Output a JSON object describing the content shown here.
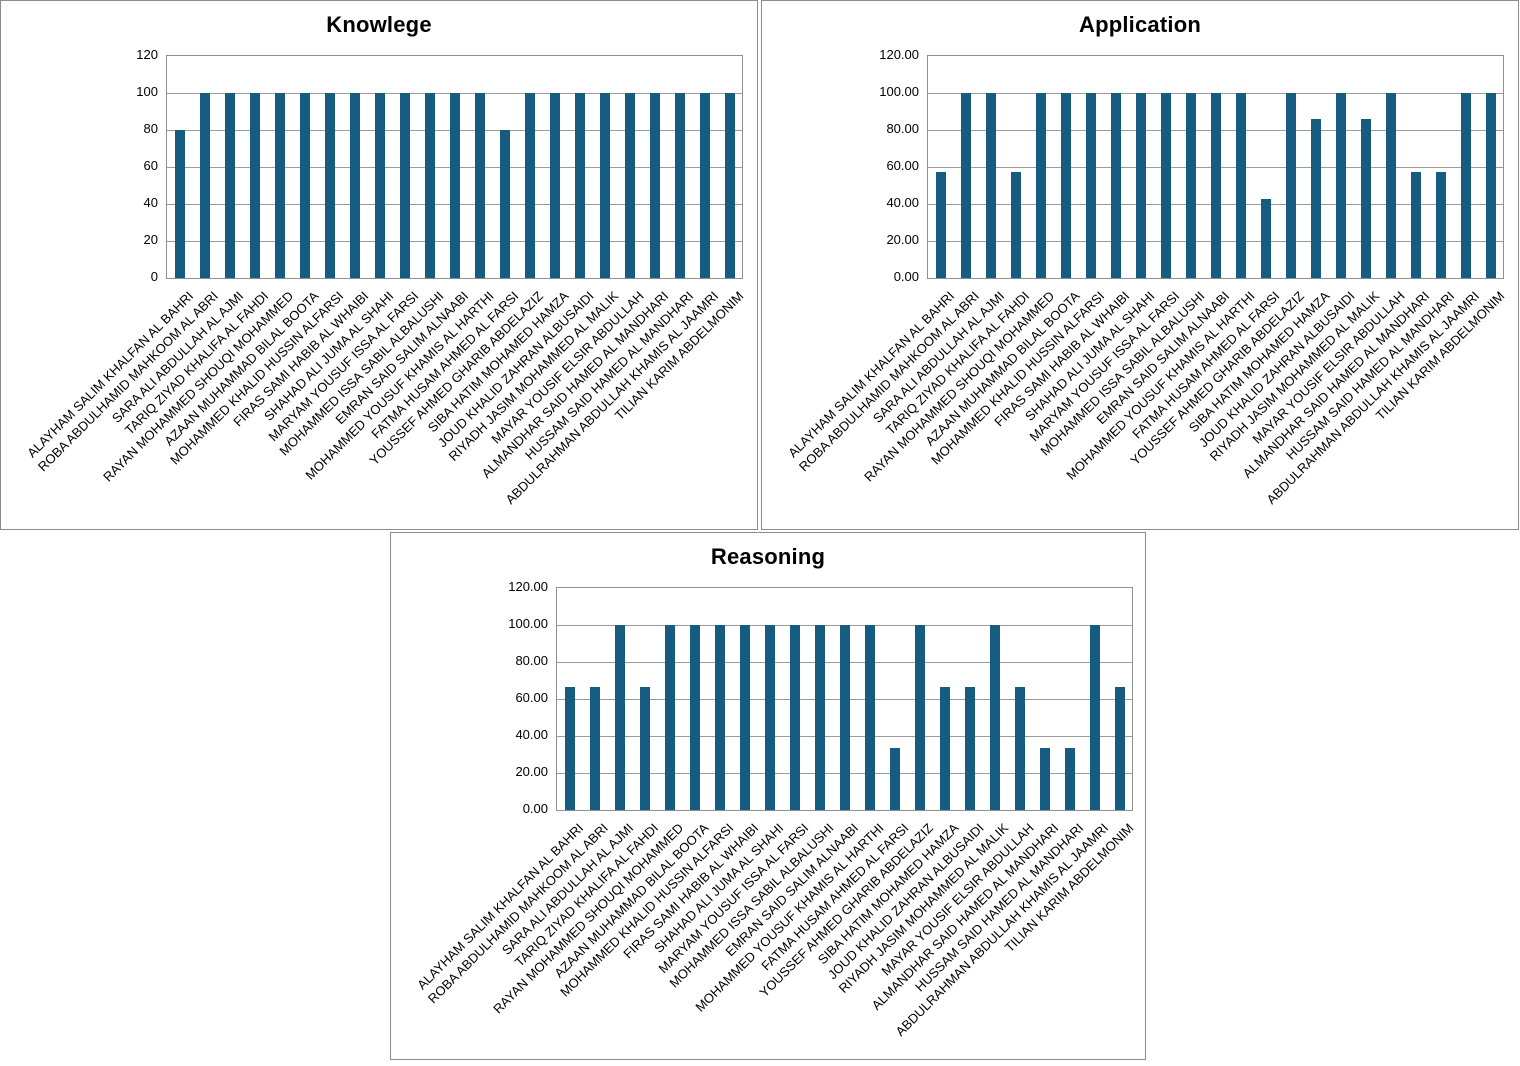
{
  "colors": {
    "bar": "#165c80",
    "panel_border": "#8c8c8c",
    "plot_border": "#8f8f8f",
    "gridline": "#9b9b9b",
    "background": "#ffffff",
    "text": "#000000"
  },
  "chart_data": [
    {
      "id": "knowlege",
      "type": "bar",
      "title": "Knowlege",
      "xlabel": "",
      "ylabel": "",
      "ylim": [
        0,
        120
      ],
      "ytick_interval": 20,
      "ytick_labels": [
        "0",
        "20",
        "40",
        "60",
        "80",
        "100",
        "120"
      ],
      "grid": true,
      "legend": false,
      "bar_color": "#165c80",
      "categories": [
        "ALAYHAM SALIM KHALFAN AL BAHRI",
        "ROBA ABDULHAMID MAHKOOM AL ABRI",
        "SARA ALI ABDULLAH AL AJMI",
        "TARIQ ZIYAD KHALIFA AL FAHDI",
        "RAYAN MOHAMMED SHOUQI MOHAMMED",
        "AZAAN MUHAMMAD BILAL BOOTA",
        "MOHAMMED KHALID HUSSIN ALFARSI",
        "FIRAS SAMI HABIB AL WHAIBI",
        "SHAHAD ALI JUMA AL SHAHI",
        "MARYAM YOUSUF ISSA AL FARSI",
        "MOHAMMED ISSA SABIL ALBALUSHI",
        "EMRAN SAID SALIM ALNAABI",
        "MOHAMMED YOUSUF KHAMIS AL HARTHI",
        "FATMA HUSAM AHMED AL FARSI",
        "YOUSSEF AHMED GHARIB ABDELAZIZ",
        "SIBA HATIM MOHAMED HAMZA",
        "JOUD KHALID ZAHRAN ALBUSAIDI",
        "RIYADH JASIM MOHAMMED AL MALIK",
        "MAYAR YOUSIF ELSIR ABDULLAH",
        "ALMANDHAR SAID HAMED AL MANDHARI",
        "HUSSAM SAID HAMED AL MANDHARI",
        "ABDULRAHMAN ABDULLAH KHAMIS AL JAAMRI",
        "TILIAN KARIM ABDELMONIM"
      ],
      "values": [
        80,
        100,
        100,
        100,
        100,
        100,
        100,
        100,
        100,
        100,
        100,
        100,
        100,
        80,
        100,
        100,
        100,
        100,
        100,
        100,
        100,
        100,
        100
      ]
    },
    {
      "id": "application",
      "type": "bar",
      "title": "Application",
      "xlabel": "",
      "ylabel": "",
      "ylim": [
        0,
        120
      ],
      "ytick_interval": 20,
      "ytick_labels": [
        "0.00",
        "20.00",
        "40.00",
        "60.00",
        "80.00",
        "100.00",
        "120.00"
      ],
      "grid": true,
      "legend": false,
      "bar_color": "#165c80",
      "categories": [
        "ALAYHAM SALIM KHALFAN AL BAHRI",
        "ROBA ABDULHAMID MAHKOOM AL ABRI",
        "SARA ALI ABDULLAH AL AJMI",
        "TARIQ ZIYAD KHALIFA AL FAHDI",
        "RAYAN MOHAMMED SHOUQI MOHAMMED",
        "AZAAN MUHAMMAD BILAL BOOTA",
        "MOHAMMED KHALID HUSSIN ALFARSI",
        "FIRAS SAMI HABIB AL WHAIBI",
        "SHAHAD ALI JUMA AL SHAHI",
        "MARYAM YOUSUF ISSA AL FARSI",
        "MOHAMMED ISSA SABIL ALBALUSHI",
        "EMRAN SAID SALIM ALNAABI",
        "MOHAMMED YOUSUF KHAMIS AL HARTHI",
        "FATMA HUSAM AHMED AL FARSI",
        "YOUSSEF AHMED GHARIB ABDELAZIZ",
        "SIBA HATIM MOHAMED HAMZA",
        "JOUD KHALID ZAHRAN ALBUSAIDI",
        "RIYADH JASIM MOHAMMED AL MALIK",
        "MAYAR YOUSIF ELSIR ABDULLAH",
        "ALMANDHAR SAID HAMED AL MANDHARI",
        "HUSSAM SAID HAMED AL MANDHARI",
        "ABDULRAHMAN ABDULLAH KHAMIS AL JAAMRI",
        "TILIAN KARIM ABDELMONIM"
      ],
      "values": [
        57.14,
        100,
        100,
        57.14,
        100,
        100,
        100,
        100,
        100,
        100,
        100,
        100,
        100,
        42.86,
        100,
        85.71,
        100,
        85.71,
        100,
        57.14,
        57.14,
        100,
        100
      ]
    },
    {
      "id": "reasoning",
      "type": "bar",
      "title": "Reasoning",
      "xlabel": "",
      "ylabel": "",
      "ylim": [
        0,
        120
      ],
      "ytick_interval": 20,
      "ytick_labels": [
        "0.00",
        "20.00",
        "40.00",
        "60.00",
        "80.00",
        "100.00",
        "120.00"
      ],
      "grid": true,
      "legend": false,
      "bar_color": "#165c80",
      "categories": [
        "ALAYHAM SALIM KHALFAN AL BAHRI",
        "ROBA ABDULHAMID MAHKOOM AL ABRI",
        "SARA ALI ABDULLAH AL AJMI",
        "TARIQ ZIYAD KHALIFA AL FAHDI",
        "RAYAN MOHAMMED SHOUQI MOHAMMED",
        "AZAAN MUHAMMAD BILAL BOOTA",
        "MOHAMMED KHALID HUSSIN ALFARSI",
        "FIRAS SAMI HABIB AL WHAIBI",
        "SHAHAD ALI JUMA AL SHAHI",
        "MARYAM YOUSUF ISSA AL FARSI",
        "MOHAMMED ISSA SABIL ALBALUSHI",
        "EMRAN SAID SALIM ALNAABI",
        "MOHAMMED YOUSUF KHAMIS AL HARTHI",
        "FATMA HUSAM AHMED AL FARSI",
        "YOUSSEF AHMED GHARIB ABDELAZIZ",
        "SIBA HATIM MOHAMED HAMZA",
        "JOUD KHALID ZAHRAN ALBUSAIDI",
        "RIYADH JASIM MOHAMMED AL MALIK",
        "MAYAR YOUSIF ELSIR ABDULLAH",
        "ALMANDHAR SAID HAMED AL MANDHARI",
        "HUSSAM SAID HAMED AL MANDHARI",
        "ABDULRAHMAN ABDULLAH KHAMIS AL JAAMRI",
        "TILIAN KARIM ABDELMONIM"
      ],
      "values": [
        66.67,
        66.67,
        100,
        66.67,
        100,
        100,
        100,
        100,
        100,
        100,
        100,
        100,
        100,
        33.33,
        100,
        66.67,
        66.67,
        100,
        66.67,
        33.33,
        33.33,
        100,
        66.67
      ]
    }
  ]
}
